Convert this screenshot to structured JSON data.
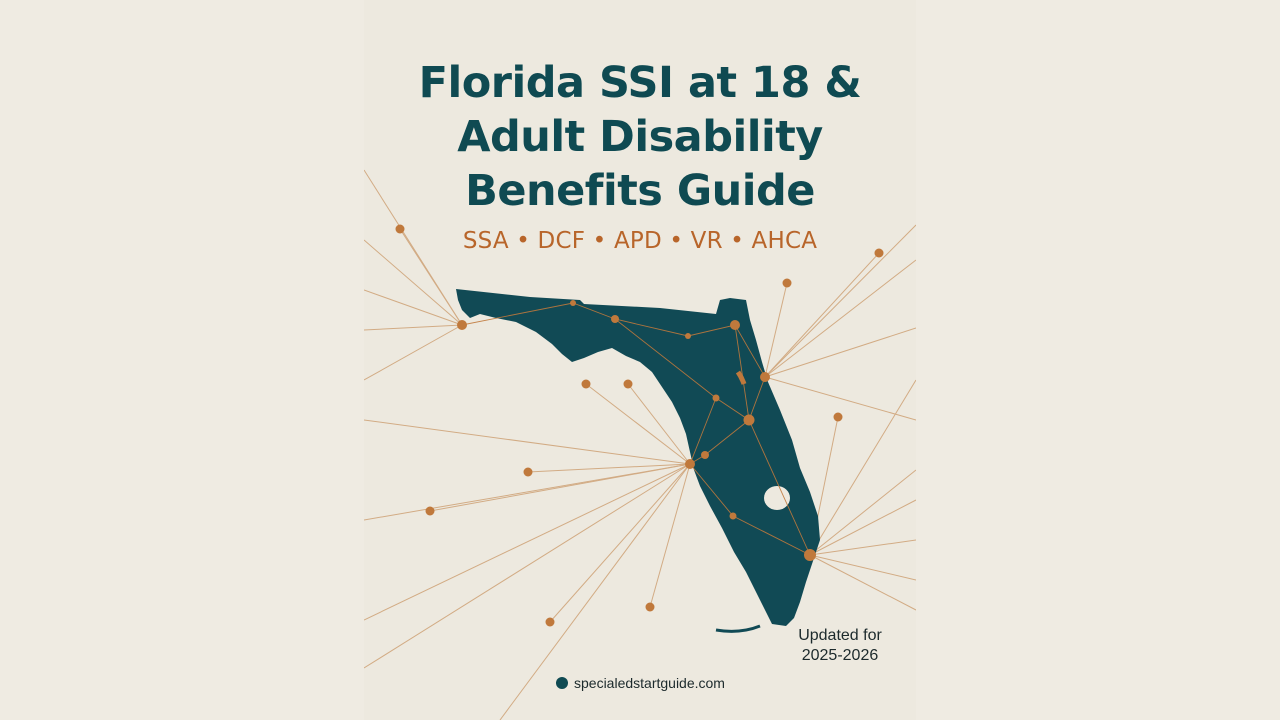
{
  "title_lines": [
    "Florida SSI at 18 &",
    "Adult Disability",
    "Benefits Guide"
  ],
  "agencies": "SSA • DCF • APD • VR • AHCA",
  "updated_lines": [
    "Updated for",
    "2025-2026"
  ],
  "website": "specialedstartguide.com",
  "colors": {
    "background": "#ede9df",
    "title": "#0f4a52",
    "map_fill": "#114a55",
    "accent": "#c0793c",
    "text": "#1c2a2c"
  }
}
